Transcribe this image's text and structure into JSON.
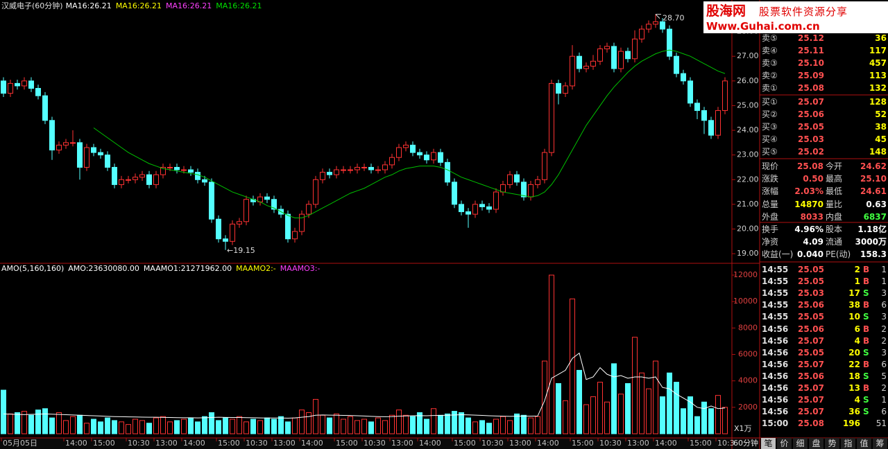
{
  "chart_data": [
    {
      "type": "candlestick",
      "title": "汉威电子(60分钟)",
      "indicators": [
        {
          "text": "MA16:26.21",
          "color": "#ffffff"
        },
        {
          "text": "MA16:26.21",
          "color": "#ffff00"
        },
        {
          "text": "MA16:26.21",
          "color": "#ff40ff"
        },
        {
          "text": "MA16:26.21",
          "color": "#00e000"
        }
      ],
      "categories": [
        "05月05日",
        null,
        null,
        null,
        null,
        null,
        null,
        null,
        null,
        "14:00",
        null,
        null,
        null,
        "15:00",
        null,
        null,
        null,
        null,
        "10:30",
        null,
        null,
        null,
        "13:00",
        null,
        null,
        null,
        "14:00",
        null,
        null,
        null,
        null,
        "15:00",
        null,
        null,
        null,
        "10:30",
        null,
        null,
        null,
        "13:00",
        null,
        null,
        null,
        "14:00",
        null,
        null,
        null,
        null,
        "15:00",
        null,
        null,
        null,
        "10:30",
        null,
        null,
        null,
        "13:00",
        null,
        null,
        null,
        "14:00",
        null,
        null,
        null,
        null,
        "15:00",
        null,
        null,
        null,
        "10:30",
        null,
        null,
        null,
        "13:00",
        null,
        null,
        null,
        "14:00",
        null,
        null,
        null,
        null,
        "15:00",
        null,
        null,
        null,
        "10:30",
        null,
        null,
        null,
        "13:00",
        null,
        null,
        null,
        "14:00",
        null,
        null,
        null,
        null,
        "15:00",
        null,
        null,
        null,
        "10:3",
        null
      ],
      "open": [
        26.0,
        25.5,
        25.9,
        25.8,
        26.0,
        25.7,
        25.4,
        24.4,
        23.2,
        23.4,
        23.5,
        23.5,
        22.5,
        23.3,
        23.1,
        23.0,
        22.5,
        21.8,
        22.0,
        22.0,
        22.1,
        22.2,
        21.8,
        22.2,
        22.5,
        22.5,
        22.4,
        22.4,
        22.3,
        22.0,
        21.9,
        20.4,
        19.6,
        19.5,
        20.2,
        20.3,
        21.2,
        21.1,
        21.3,
        21.2,
        20.8,
        20.6,
        19.6,
        19.9,
        20.6,
        21.0,
        22.0,
        22.3,
        22.2,
        22.4,
        22.4,
        22.4,
        22.5,
        22.5,
        22.4,
        22.4,
        22.6,
        22.9,
        23.3,
        23.4,
        23.1,
        23.0,
        22.8,
        23.1,
        22.7,
        21.9,
        21.0,
        20.7,
        20.6,
        21.0,
        20.9,
        20.8,
        21.5,
        21.8,
        22.2,
        21.9,
        21.3,
        21.8,
        22.0,
        23.1,
        25.9,
        25.5,
        25.8,
        27.0,
        26.5,
        26.6,
        26.8,
        27.3,
        27.4,
        26.5,
        27.2,
        26.9,
        27.7,
        28.1,
        28.3,
        28.4,
        28.1,
        27.0,
        26.3,
        26.0,
        25.1,
        24.8,
        24.4,
        23.8,
        24.8
      ],
      "high": [
        26.15,
        26.05,
        26.05,
        26.15,
        26.15,
        25.85,
        25.55,
        24.55,
        23.55,
        23.65,
        24.0,
        23.65,
        23.45,
        23.45,
        23.25,
        23.15,
        22.65,
        22.15,
        22.15,
        22.25,
        22.35,
        22.35,
        22.35,
        22.65,
        22.65,
        22.65,
        22.55,
        22.55,
        22.45,
        22.15,
        22.05,
        20.55,
        19.75,
        20.35,
        20.45,
        21.35,
        21.35,
        21.45,
        21.45,
        21.35,
        20.95,
        20.75,
        20.05,
        20.75,
        21.15,
        22.15,
        22.45,
        22.45,
        22.55,
        22.55,
        22.55,
        22.65,
        22.65,
        22.65,
        22.55,
        22.75,
        23.05,
        23.45,
        23.55,
        23.55,
        23.25,
        23.15,
        23.25,
        23.25,
        22.85,
        22.05,
        21.15,
        20.85,
        21.15,
        21.15,
        21.05,
        21.65,
        21.95,
        22.35,
        22.35,
        22.05,
        21.95,
        22.15,
        23.25,
        26.05,
        26.05,
        25.95,
        27.45,
        27.15,
        26.75,
        27.05,
        27.45,
        27.55,
        27.55,
        27.35,
        27.35,
        28.05,
        28.25,
        28.45,
        28.7,
        28.55,
        28.25,
        27.15,
        26.45,
        26.15,
        25.25,
        24.95,
        24.55,
        24.95,
        26.15
      ],
      "low": [
        25.35,
        25.35,
        25.65,
        25.65,
        25.55,
        25.25,
        24.25,
        22.8,
        23.05,
        23.25,
        23.35,
        22.0,
        22.35,
        22.95,
        22.85,
        22.35,
        21.65,
        21.65,
        21.85,
        21.85,
        21.95,
        21.65,
        21.65,
        22.05,
        22.35,
        22.25,
        22.25,
        22.15,
        21.85,
        21.75,
        20.25,
        19.45,
        19.15,
        19.35,
        20.05,
        20.15,
        20.95,
        20.95,
        21.05,
        20.65,
        20.45,
        19.45,
        19.45,
        19.75,
        20.45,
        20.85,
        21.85,
        22.05,
        22.05,
        22.25,
        22.25,
        22.25,
        22.35,
        22.25,
        22.25,
        22.25,
        22.45,
        22.75,
        23.15,
        22.95,
        22.85,
        22.65,
        22.65,
        22.55,
        21.75,
        20.85,
        20.55,
        20.05,
        20.45,
        20.75,
        20.65,
        20.65,
        21.35,
        21.65,
        21.75,
        21.15,
        21.15,
        21.65,
        21.85,
        22.95,
        25.05,
        25.35,
        25.65,
        26.35,
        26.35,
        26.45,
        26.65,
        27.15,
        26.35,
        26.35,
        26.75,
        26.75,
        27.55,
        27.95,
        28.15,
        27.95,
        26.85,
        26.15,
        25.85,
        24.95,
        24.45,
        23.85,
        23.65,
        23.65,
        24.65
      ],
      "close": [
        25.5,
        25.9,
        25.8,
        26.0,
        25.7,
        25.4,
        24.4,
        23.2,
        23.4,
        23.5,
        23.5,
        22.5,
        23.3,
        23.1,
        23.0,
        22.5,
        21.8,
        22.0,
        22.0,
        22.1,
        22.2,
        21.8,
        22.2,
        22.5,
        22.5,
        22.4,
        22.4,
        22.3,
        22.0,
        21.9,
        20.4,
        19.6,
        19.5,
        20.2,
        20.3,
        21.2,
        21.1,
        21.3,
        21.2,
        20.8,
        20.6,
        19.6,
        19.9,
        20.6,
        21.0,
        22.0,
        22.3,
        22.2,
        22.4,
        22.4,
        22.4,
        22.5,
        22.5,
        22.4,
        22.4,
        22.6,
        22.9,
        23.3,
        23.4,
        23.1,
        23.0,
        22.8,
        23.1,
        22.7,
        21.9,
        21.0,
        20.7,
        20.6,
        21.0,
        20.9,
        20.8,
        21.5,
        21.8,
        22.2,
        21.9,
        21.3,
        21.8,
        22.0,
        23.1,
        25.9,
        25.5,
        25.8,
        27.0,
        26.5,
        26.6,
        26.8,
        27.3,
        27.4,
        26.5,
        27.2,
        26.9,
        27.7,
        28.1,
        28.3,
        28.4,
        28.1,
        27.0,
        26.3,
        26.0,
        25.1,
        24.8,
        24.4,
        23.8,
        24.8,
        26.0
      ],
      "up_color": "#ff3232",
      "down_color": "#54ffff",
      "ma": {
        "color": "#00c000",
        "values": [
          null,
          null,
          null,
          null,
          null,
          null,
          null,
          null,
          null,
          null,
          null,
          null,
          null,
          24.1,
          23.9,
          23.7,
          23.5,
          23.3,
          23.1,
          22.95,
          22.8,
          22.65,
          22.55,
          22.45,
          22.4,
          22.35,
          22.3,
          22.25,
          22.2,
          22.1,
          21.95,
          21.8,
          21.65,
          21.5,
          21.4,
          21.3,
          21.2,
          21.1,
          20.95,
          20.85,
          20.7,
          20.55,
          20.45,
          20.45,
          20.55,
          20.7,
          20.85,
          21.0,
          21.15,
          21.3,
          21.45,
          21.55,
          21.65,
          21.8,
          21.95,
          22.1,
          22.2,
          22.35,
          22.45,
          22.5,
          22.55,
          22.55,
          22.55,
          22.5,
          22.4,
          22.25,
          22.1,
          22.0,
          21.9,
          21.8,
          21.7,
          21.6,
          21.5,
          21.45,
          21.4,
          21.35,
          21.3,
          21.35,
          21.5,
          21.8,
          22.2,
          22.7,
          23.2,
          23.7,
          24.2,
          24.6,
          25.0,
          25.4,
          25.75,
          26.05,
          26.35,
          26.6,
          26.8,
          26.95,
          27.1,
          27.2,
          27.25,
          27.2,
          27.1,
          27.0,
          26.85,
          26.7,
          26.55,
          26.4,
          26.3
        ]
      },
      "high_label": "28.70",
      "low_label": "←19.15",
      "ylim": [
        18.61,
        29.28
      ],
      "yticks": [
        {
          "value": 19,
          "label": "19.00"
        },
        {
          "value": 20,
          "label": "20.00"
        },
        {
          "value": 21,
          "label": "21.00"
        },
        {
          "value": 22,
          "label": "22.00"
        },
        {
          "value": 23,
          "label": "23.00"
        },
        {
          "value": 24,
          "label": "24.00"
        },
        {
          "value": 25,
          "label": "25.00"
        },
        {
          "value": 26,
          "label": "26.00"
        },
        {
          "value": 27,
          "label": "27.00"
        },
        {
          "value": 28,
          "label": "28.00"
        }
      ],
      "period_label": "60分钟"
    },
    {
      "type": "bar",
      "indicators": [
        {
          "text": "AMO(5,160,160)",
          "color": "#ffffff"
        },
        {
          "text": "AMO:23630080.00",
          "color": "#ffffff"
        },
        {
          "text": "MAAMO1:21271962.00",
          "color": "#ffffff"
        },
        {
          "text": "MAAMO2:-",
          "color": "#ffff00"
        },
        {
          "text": "MAAMO3:-",
          "color": "#ff40ff"
        }
      ],
      "values": [
        3300,
        1500,
        1600,
        1700,
        1400,
        1800,
        1900,
        1200,
        1600,
        1000,
        1300,
        1400,
        800,
        1100,
        900,
        1200,
        1000,
        900,
        700,
        1100,
        1000,
        800,
        1200,
        1300,
        900,
        1000,
        1100,
        1200,
        900,
        1300,
        1600,
        1000,
        1200,
        1100,
        1300,
        900,
        1100,
        1000,
        1200,
        1100,
        1300,
        900,
        1200,
        1800,
        1600,
        2600,
        1400,
        1200,
        1500,
        1100,
        1300,
        1000,
        1100,
        900,
        1200,
        1000,
        1400,
        1800,
        1400,
        1300,
        1600,
        1100,
        1900,
        1400,
        1500,
        1700,
        1600,
        1200,
        900,
        1000,
        800,
        1100,
        1300,
        1000,
        1500,
        1400,
        1200,
        1300,
        5500,
        12000,
        3800,
        2500,
        10200,
        4800,
        2200,
        2800,
        3900,
        2400,
        5300,
        3000,
        3800,
        7300,
        4600,
        3400,
        5500,
        2800,
        4600,
        3900,
        1900,
        2800,
        1300,
        2400,
        1900,
        2900,
        2000
      ],
      "ma": {
        "color": "#ffffff",
        "values": [
          1500,
          1480,
          1460,
          1450,
          1470,
          1480,
          1500,
          1480,
          1460,
          1440,
          1420,
          1400,
          1380,
          1360,
          1340,
          1320,
          1300,
          1290,
          1280,
          1270,
          1260,
          1250,
          1250,
          1240,
          1230,
          1220,
          1210,
          1210,
          1200,
          1210,
          1230,
          1250,
          1240,
          1230,
          1230,
          1220,
          1210,
          1200,
          1190,
          1190,
          1190,
          1180,
          1200,
          1250,
          1300,
          1400,
          1420,
          1410,
          1400,
          1390,
          1380,
          1360,
          1340,
          1320,
          1300,
          1290,
          1300,
          1330,
          1350,
          1360,
          1370,
          1360,
          1380,
          1390,
          1400,
          1420,
          1440,
          1430,
          1410,
          1390,
          1360,
          1340,
          1330,
          1320,
          1330,
          1340,
          1330,
          1340,
          2500,
          4200,
          4500,
          4800,
          5700,
          6100,
          4100,
          4300,
          5000,
          4500,
          4300,
          4400,
          4200,
          4300,
          4300,
          4200,
          4300,
          3500,
          3400,
          3000,
          2700,
          2400,
          2000,
          1900,
          2100,
          1900,
          1950
        ]
      },
      "ylim": [
        0,
        12840
      ],
      "yticks": [
        2000,
        4000,
        6000,
        8000,
        10000,
        12000
      ],
      "unit_label": "X1万"
    }
  ],
  "logo": {
    "name": "股海网",
    "slogan": "股票软件资源分享",
    "url": "Www.Guhai.com.cn"
  },
  "order_book": [
    {
      "label": "卖⑤",
      "price": "25.12",
      "volume": "36"
    },
    {
      "label": "卖④",
      "price": "25.11",
      "volume": "117"
    },
    {
      "label": "卖③",
      "price": "25.10",
      "volume": "457"
    },
    {
      "label": "卖②",
      "price": "25.09",
      "volume": "113"
    },
    {
      "label": "卖①",
      "price": "25.08",
      "volume": "132"
    },
    {
      "label": "买①",
      "price": "25.07",
      "volume": "128"
    },
    {
      "label": "买②",
      "price": "25.06",
      "volume": "52"
    },
    {
      "label": "买③",
      "price": "25.05",
      "volume": "38"
    },
    {
      "label": "买④",
      "price": "25.03",
      "volume": "45"
    },
    {
      "label": "买⑤",
      "price": "25.02",
      "volume": "148"
    }
  ],
  "quote": [
    {
      "cells": [
        "现价",
        "25.08",
        "今开",
        "24.62"
      ],
      "colors": [
        "#ff5050",
        "#ff5050"
      ]
    },
    {
      "cells": [
        "涨跌",
        "0.50",
        "最高",
        "25.10"
      ],
      "colors": [
        "#ff5050",
        "#ff5050"
      ]
    },
    {
      "cells": [
        "涨幅",
        "2.03%",
        "最低",
        "24.61"
      ],
      "colors": [
        "#ff5050",
        "#ff5050"
      ]
    },
    {
      "cells": [
        "总量",
        "14870",
        "量比",
        "0.63"
      ],
      "colors": [
        "#ffff00",
        "#ffffff"
      ]
    },
    {
      "cells": [
        "外盘",
        "8033",
        "内盘",
        "6837"
      ],
      "colors": [
        "#ff5050",
        "#40ff40"
      ]
    },
    {
      "cells": [
        "换手",
        "4.96%",
        "股本",
        "1.18亿"
      ],
      "colors": [
        "#ffffff",
        "#ffffff"
      ]
    },
    {
      "cells": [
        "净资",
        "4.09",
        "流通",
        "3000万"
      ],
      "colors": [
        "#ffffff",
        "#ffffff"
      ]
    },
    {
      "cells": [
        "收益(一)",
        "0.040",
        "PE(动)",
        "158.3"
      ],
      "colors": [
        "#ffffff",
        "#ffffff"
      ]
    }
  ],
  "trades": [
    [
      "14:55",
      "25.05",
      "2",
      "B",
      "1"
    ],
    [
      "14:55",
      "25.05",
      "1",
      "B",
      "1"
    ],
    [
      "14:55",
      "25.03",
      "17",
      "S",
      "3"
    ],
    [
      "14:55",
      "25.06",
      "38",
      "B",
      "6"
    ],
    [
      "14:55",
      "25.05",
      "10",
      "S",
      "3"
    ],
    [
      "14:56",
      "25.06",
      "6",
      "B",
      "2"
    ],
    [
      "14:56",
      "25.07",
      "4",
      "B",
      "2"
    ],
    [
      "14:56",
      "25.05",
      "20",
      "S",
      "3"
    ],
    [
      "14:56",
      "25.07",
      "22",
      "B",
      "6"
    ],
    [
      "14:56",
      "25.06",
      "18",
      "S",
      "5"
    ],
    [
      "14:56",
      "25.07",
      "13",
      "B",
      "2"
    ],
    [
      "14:56",
      "25.07",
      "4",
      "S",
      "1"
    ],
    [
      "14:56",
      "25.07",
      "36",
      "S",
      "6"
    ],
    [
      "15:00",
      "25.08",
      "196",
      null,
      "51"
    ]
  ],
  "tabs": [
    "笔",
    "价",
    "细",
    "盘",
    "势",
    "指",
    "值",
    "筹"
  ],
  "active_tab": 0
}
